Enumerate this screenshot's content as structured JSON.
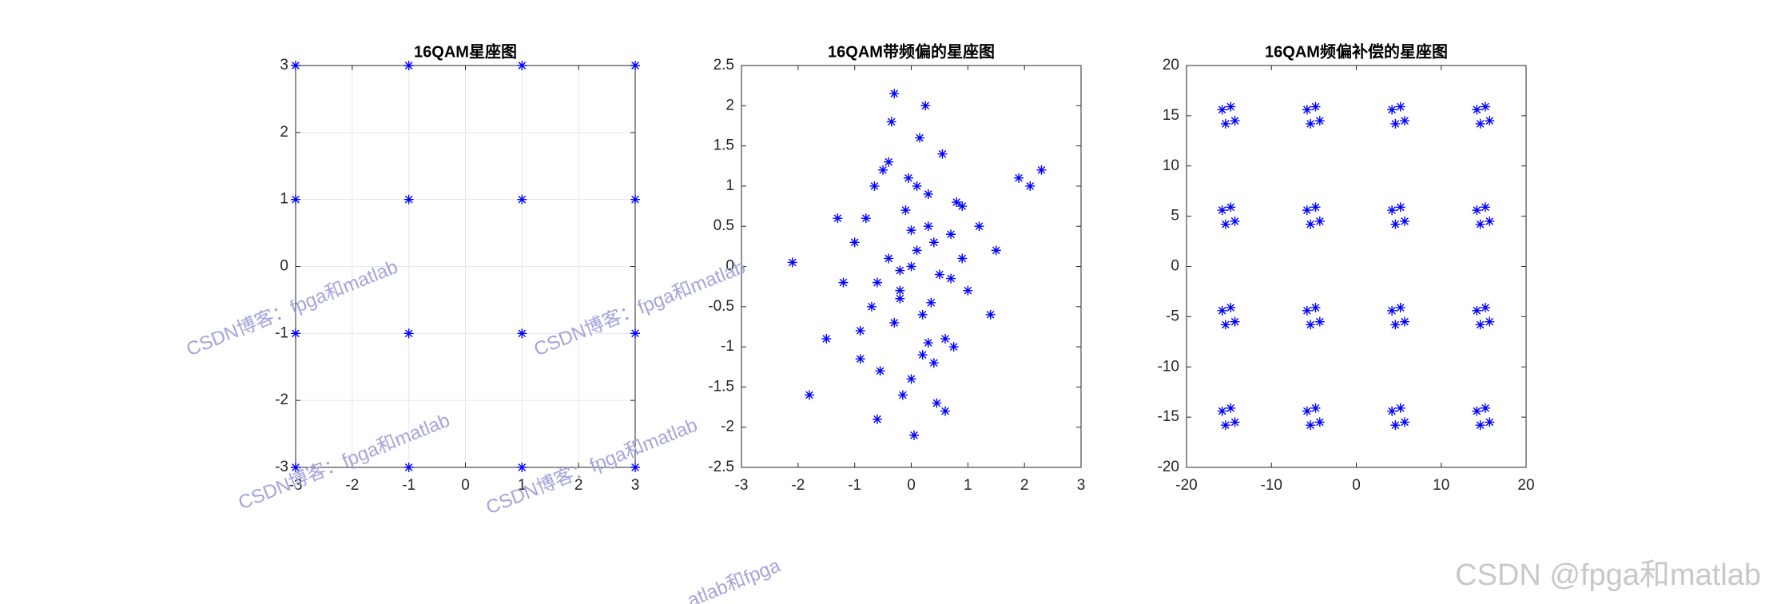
{
  "chart_data": [
    {
      "type": "scatter",
      "title": "16QAM星座图",
      "color": "#0000ff",
      "grid": true,
      "x": [
        -3,
        -3,
        -3,
        -3,
        -1,
        -1,
        -1,
        -1,
        1,
        1,
        1,
        1,
        3,
        3,
        3,
        3
      ],
      "values": [
        -3,
        -1,
        1,
        3,
        -3,
        -1,
        1,
        3,
        -3,
        -1,
        1,
        3,
        -3,
        -1,
        1,
        3
      ],
      "xlim": [
        -3,
        3
      ],
      "xticks": [
        -3,
        -2,
        -1,
        0,
        1,
        2,
        3
      ],
      "ylim": [
        -3,
        3
      ],
      "yticks": [
        -3,
        -2,
        -1,
        0,
        1,
        2,
        3
      ]
    },
    {
      "type": "scatter",
      "title": "16QAM带频偏的星座图",
      "color": "#0000ff",
      "grid": false,
      "x": [
        0.1,
        -0.2,
        0.3,
        0.5,
        -0.4,
        0.0,
        0.2,
        -0.1,
        0.4,
        -0.6,
        0.7,
        -0.3,
        0.1,
        0.6,
        -0.8,
        0.9,
        -0.5,
        0.2,
        -0.2,
        0.3,
        0.0,
        -0.7,
        1.0,
        -1.0,
        0.8,
        -0.9,
        1.2,
        -1.2,
        0.4,
        -0.4,
        0.15,
        -0.15,
        0.55,
        -0.55,
        0.25,
        -0.35,
        0.05,
        0.45,
        -0.65,
        0.75,
        -0.3,
        2.3,
        2.1,
        1.9,
        -2.1,
        -1.8,
        -0.6,
        0.6,
        0.0,
        -0.2,
        0.7,
        -1.3,
        1.4,
        -1.5,
        1.5,
        0.3,
        -0.9,
        0.9,
        -0.05,
        0.35
      ],
      "values": [
        0.2,
        -0.3,
        0.5,
        -0.1,
        0.1,
        0.0,
        -0.6,
        0.7,
        0.3,
        -0.2,
        0.4,
        -0.7,
        1.0,
        -0.9,
        0.6,
        0.1,
        1.2,
        -1.1,
        -0.4,
        0.9,
        -1.4,
        -0.5,
        -0.3,
        0.3,
        0.8,
        -0.8,
        0.5,
        -0.2,
        -1.2,
        1.3,
        1.6,
        -1.6,
        1.4,
        -1.3,
        2.0,
        1.8,
        -2.1,
        -1.7,
        1.0,
        -1.0,
        2.15,
        1.2,
        1.0,
        1.1,
        0.05,
        -1.6,
        -1.9,
        -1.8,
        0.45,
        -0.05,
        -0.15,
        0.6,
        -0.6,
        -0.9,
        0.2,
        -0.95,
        -1.15,
        0.75,
        1.1,
        -0.45
      ],
      "xlim": [
        -3,
        3
      ],
      "xticks": [
        -3,
        -2,
        -1,
        0,
        1,
        2,
        3
      ],
      "ylim": [
        -2.5,
        2.5
      ],
      "yticks": [
        -2.5,
        -2,
        -1.5,
        -1,
        -0.5,
        0,
        0.5,
        1,
        1.5,
        2,
        2.5
      ]
    },
    {
      "type": "scatter",
      "title": "16QAM频偏补偿的星座图",
      "color": "#0000ff",
      "grid": false,
      "x": [
        -15.8,
        -14.3,
        -14.8,
        -15.4,
        -5.8,
        -4.3,
        -4.8,
        -5.4,
        4.2,
        5.7,
        5.2,
        4.6,
        14.2,
        15.7,
        15.2,
        14.6,
        -15.8,
        -14.3,
        -14.8,
        -15.4,
        -5.8,
        -4.3,
        -4.8,
        -5.4,
        4.2,
        5.7,
        5.2,
        4.6,
        14.2,
        15.7,
        15.2,
        14.6,
        -15.8,
        -14.3,
        -14.8,
        -15.4,
        -5.8,
        -4.3,
        -4.8,
        -5.4,
        4.2,
        5.7,
        5.2,
        4.6,
        14.2,
        15.7,
        15.2,
        14.6,
        -15.8,
        -14.3,
        -14.8,
        -15.4,
        -5.8,
        -4.3,
        -4.8,
        -5.4,
        4.2,
        5.7,
        5.2,
        4.6,
        14.2,
        15.7,
        15.2,
        14.6
      ],
      "values": [
        15.6,
        14.5,
        15.9,
        14.2,
        15.6,
        14.5,
        15.9,
        14.2,
        15.6,
        14.5,
        15.9,
        14.2,
        15.6,
        14.5,
        15.9,
        14.2,
        5.6,
        4.5,
        5.9,
        4.2,
        5.6,
        4.5,
        5.9,
        4.2,
        5.6,
        4.5,
        5.9,
        4.2,
        5.6,
        4.5,
        5.9,
        4.2,
        -4.4,
        -5.5,
        -4.1,
        -5.8,
        -4.4,
        -5.5,
        -4.1,
        -5.8,
        -4.4,
        -5.5,
        -4.1,
        -5.8,
        -4.4,
        -5.5,
        -4.1,
        -5.8,
        -14.4,
        -15.5,
        -14.1,
        -15.8,
        -14.4,
        -15.5,
        -14.1,
        -15.8,
        -14.4,
        -15.5,
        -14.1,
        -15.8,
        -14.4,
        -15.5,
        -14.1,
        -15.8
      ],
      "xlim": [
        -20,
        20
      ],
      "xticks": [
        -20,
        -10,
        0,
        10,
        20
      ],
      "ylim": [
        -20,
        20
      ],
      "yticks": [
        -20,
        -15,
        -10,
        -5,
        0,
        5,
        10,
        15,
        20
      ]
    }
  ],
  "watermarks": [
    "CSDN博客：fpga和matlab",
    "CSDN博客：fpga和matlab",
    "CSDN博客：fpga和matlab",
    "CSDN博客：fpga和matlab",
    "atlab和fpga"
  ],
  "footer": "CSDN @fpga和matlab"
}
